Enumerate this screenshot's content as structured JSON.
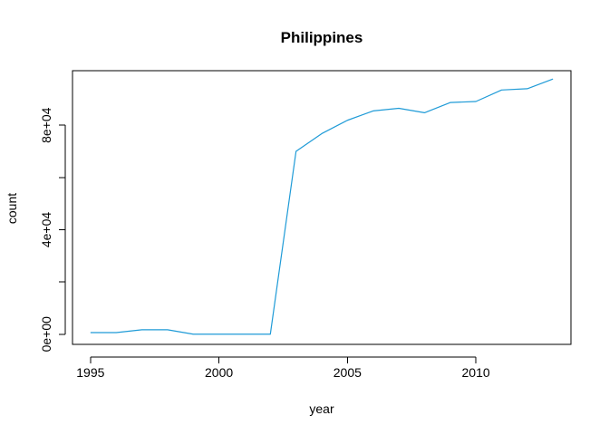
{
  "chart_data": {
    "type": "line",
    "title": "Philippines",
    "xlabel": "year",
    "ylabel": "count",
    "xlim": [
      1994.3,
      2013.7
    ],
    "ylim": [
      -3900,
      100900
    ],
    "x_ticks": [
      1995,
      2000,
      2005,
      2010
    ],
    "x_tick_labels": [
      "1995",
      "2000",
      "2005",
      "2010"
    ],
    "y_ticks": [
      0,
      20000,
      40000,
      60000,
      80000
    ],
    "y_tick_labels": [
      "0e+00",
      "",
      "4e+04",
      "",
      "8e+04"
    ],
    "grid": false,
    "legend": "none",
    "series_color": "#1f9bd7",
    "series": [
      {
        "x": [
          1995,
          1996,
          1997,
          1998,
          1999,
          2000,
          2001,
          2002,
          2003,
          2004,
          2005,
          2006,
          2007,
          2008,
          2009,
          2010,
          2011,
          2012,
          2013
        ],
        "values": [
          600,
          600,
          1700,
          1700,
          0,
          0,
          0,
          0,
          70000,
          76800,
          81900,
          85500,
          86500,
          84800,
          88700,
          89100,
          93500,
          94000,
          97700
        ]
      }
    ]
  }
}
